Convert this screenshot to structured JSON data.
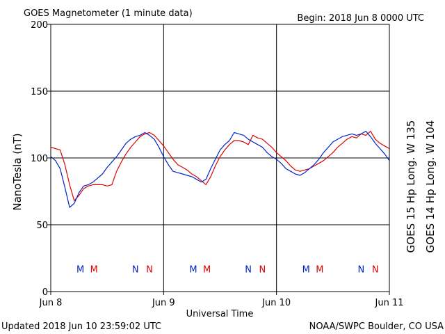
{
  "chart_data": {
    "type": "line",
    "title": "GOES Magnetometer (1 minute data)",
    "begin_label": "Begin:  2018 Jun 8 0000 UTC",
    "xlabel": "Universal Time",
    "ylabel": "NanoTesla (nT)",
    "ylim": [
      0,
      200
    ],
    "yticks": [
      0,
      50,
      100,
      150,
      200
    ],
    "xlim": [
      0,
      72
    ],
    "x_unit": "hours since 2018 Jun 8 0000 UTC",
    "x_ticks": [
      {
        "x": 0,
        "label": "Jun 8"
      },
      {
        "x": 24,
        "label": "Jun 9"
      },
      {
        "x": 48,
        "label": "Jun 10"
      },
      {
        "x": 72,
        "label": "Jun 11"
      }
    ],
    "grid": true,
    "series": [
      {
        "name": "GOES 15 Hp  Long. W 135",
        "color": "#dd0000",
        "points": [
          [
            0,
            108
          ],
          [
            1,
            107
          ],
          [
            2,
            106
          ],
          [
            3,
            95
          ],
          [
            4,
            80
          ],
          [
            5,
            68
          ],
          [
            6,
            72
          ],
          [
            7,
            77
          ],
          [
            8,
            79
          ],
          [
            9,
            80
          ],
          [
            10,
            80
          ],
          [
            11,
            80
          ],
          [
            12,
            79
          ],
          [
            13,
            80
          ],
          [
            14,
            90
          ],
          [
            15,
            97
          ],
          [
            16,
            103
          ],
          [
            17,
            108
          ],
          [
            18,
            112
          ],
          [
            19,
            116
          ],
          [
            20,
            118
          ],
          [
            21,
            119
          ],
          [
            22,
            117
          ],
          [
            23,
            113
          ],
          [
            24,
            109
          ],
          [
            25,
            104
          ],
          [
            26,
            99
          ],
          [
            27,
            95
          ],
          [
            28,
            93
          ],
          [
            29,
            91
          ],
          [
            30,
            88
          ],
          [
            31,
            86
          ],
          [
            32,
            83
          ],
          [
            33,
            80
          ],
          [
            34,
            86
          ],
          [
            35,
            94
          ],
          [
            36,
            101
          ],
          [
            37,
            106
          ],
          [
            38,
            110
          ],
          [
            39,
            113
          ],
          [
            40,
            113
          ],
          [
            41,
            112
          ],
          [
            42,
            110
          ],
          [
            43,
            117
          ],
          [
            44,
            115
          ],
          [
            45,
            114
          ],
          [
            46,
            111
          ],
          [
            47,
            108
          ],
          [
            48,
            104
          ],
          [
            49,
            101
          ],
          [
            50,
            98
          ],
          [
            51,
            94
          ],
          [
            52,
            91
          ],
          [
            53,
            90
          ],
          [
            54,
            91
          ],
          [
            55,
            92
          ],
          [
            56,
            94
          ],
          [
            57,
            96
          ],
          [
            58,
            98
          ],
          [
            59,
            101
          ],
          [
            60,
            104
          ],
          [
            61,
            108
          ],
          [
            62,
            111
          ],
          [
            63,
            114
          ],
          [
            64,
            116
          ],
          [
            65,
            115
          ],
          [
            66,
            118
          ],
          [
            67,
            117
          ],
          [
            68,
            120
          ],
          [
            69,
            114
          ],
          [
            70,
            111
          ],
          [
            71,
            109
          ],
          [
            72,
            107
          ]
        ]
      },
      {
        "name": "GOES 14 Hp  Long. W 104",
        "color": "#0022cc",
        "points": [
          [
            0,
            101
          ],
          [
            1,
            98
          ],
          [
            2,
            92
          ],
          [
            3,
            78
          ],
          [
            4,
            63
          ],
          [
            5,
            66
          ],
          [
            6,
            74
          ],
          [
            7,
            79
          ],
          [
            8,
            80
          ],
          [
            9,
            82
          ],
          [
            10,
            85
          ],
          [
            11,
            88
          ],
          [
            12,
            93
          ],
          [
            13,
            97
          ],
          [
            14,
            101
          ],
          [
            15,
            106
          ],
          [
            16,
            111
          ],
          [
            17,
            114
          ],
          [
            18,
            116
          ],
          [
            19,
            117
          ],
          [
            20,
            119
          ],
          [
            21,
            117
          ],
          [
            22,
            114
          ],
          [
            23,
            108
          ],
          [
            24,
            101
          ],
          [
            25,
            95
          ],
          [
            26,
            90
          ],
          [
            27,
            89
          ],
          [
            28,
            88
          ],
          [
            29,
            87
          ],
          [
            30,
            86
          ],
          [
            31,
            84
          ],
          [
            32,
            82
          ],
          [
            33,
            84
          ],
          [
            34,
            92
          ],
          [
            35,
            99
          ],
          [
            36,
            106
          ],
          [
            37,
            110
          ],
          [
            38,
            113
          ],
          [
            39,
            119
          ],
          [
            40,
            118
          ],
          [
            41,
            117
          ],
          [
            42,
            114
          ],
          [
            43,
            112
          ],
          [
            44,
            110
          ],
          [
            45,
            108
          ],
          [
            46,
            104
          ],
          [
            47,
            101
          ],
          [
            48,
            99
          ],
          [
            49,
            96
          ],
          [
            50,
            92
          ],
          [
            51,
            90
          ],
          [
            52,
            88
          ],
          [
            53,
            87
          ],
          [
            54,
            89
          ],
          [
            55,
            92
          ],
          [
            56,
            95
          ],
          [
            57,
            99
          ],
          [
            58,
            104
          ],
          [
            59,
            108
          ],
          [
            60,
            112
          ],
          [
            61,
            114
          ],
          [
            62,
            116
          ],
          [
            63,
            117
          ],
          [
            64,
            118
          ],
          [
            65,
            117
          ],
          [
            66,
            118
          ],
          [
            67,
            120
          ],
          [
            68,
            116
          ],
          [
            69,
            111
          ],
          [
            70,
            107
          ],
          [
            71,
            103
          ],
          [
            72,
            98
          ]
        ]
      }
    ],
    "markers": [
      {
        "label": "M",
        "x": 6.3,
        "color": "#0022cc"
      },
      {
        "label": "M",
        "x": 9.2,
        "color": "#dd0000"
      },
      {
        "label": "N",
        "x": 18.0,
        "color": "#0022cc"
      },
      {
        "label": "N",
        "x": 21.0,
        "color": "#dd0000"
      },
      {
        "label": "M",
        "x": 30.3,
        "color": "#0022cc"
      },
      {
        "label": "M",
        "x": 33.2,
        "color": "#dd0000"
      },
      {
        "label": "N",
        "x": 42.0,
        "color": "#0022cc"
      },
      {
        "label": "N",
        "x": 45.0,
        "color": "#dd0000"
      },
      {
        "label": "M",
        "x": 54.3,
        "color": "#0022cc"
      },
      {
        "label": "M",
        "x": 57.2,
        "color": "#dd0000"
      },
      {
        "label": "N",
        "x": 66.0,
        "color": "#0022cc"
      },
      {
        "label": "N",
        "x": 69.0,
        "color": "#dd0000"
      }
    ],
    "marker_level": 17
  },
  "footer": {
    "left": "Updated 2018 Jun 10 23:59:02 UTC",
    "right": "NOAA/SWPC Boulder, CO USA"
  }
}
